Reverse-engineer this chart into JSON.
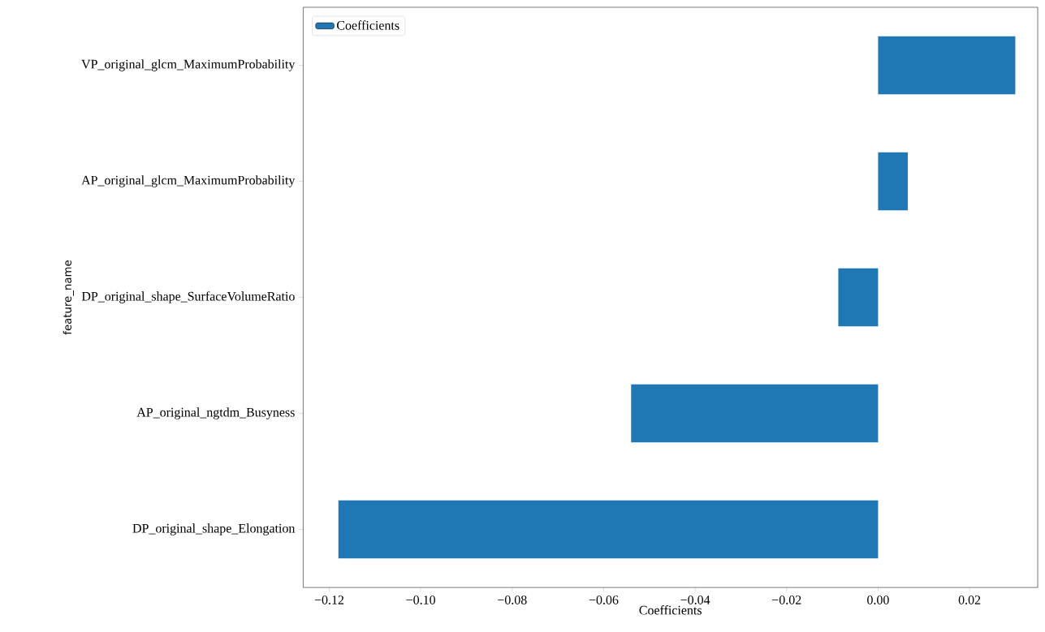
{
  "chart_data": {
    "type": "bar",
    "orientation": "horizontal",
    "xlabel": "Coefficients",
    "ylabel": "feature_name",
    "categories": [
      "VP_original_glcm_MaximumProbability",
      "AP_original_glcm_MaximumProbability",
      "DP_original_shape_SurfaceVolumeRatio",
      "AP_original_ngtdm_Busyness",
      "DP_original_shape_Elongation"
    ],
    "series": [
      {
        "name": "Coefficients",
        "color": "#1f77b4",
        "values": [
          0.03,
          0.0065,
          -0.0087,
          -0.054,
          -0.118
        ]
      }
    ],
    "xlim": [
      -0.1257,
      0.0349
    ],
    "xticks": [
      {
        "value": -0.12,
        "label": "−0.12"
      },
      {
        "value": -0.1,
        "label": "−0.10"
      },
      {
        "value": -0.08,
        "label": "−0.08"
      },
      {
        "value": -0.06,
        "label": "−0.06"
      },
      {
        "value": -0.04,
        "label": "−0.04"
      },
      {
        "value": -0.02,
        "label": "−0.02"
      },
      {
        "value": 0.0,
        "label": "0.00"
      },
      {
        "value": 0.02,
        "label": "0.02"
      }
    ],
    "legend": "top left"
  }
}
